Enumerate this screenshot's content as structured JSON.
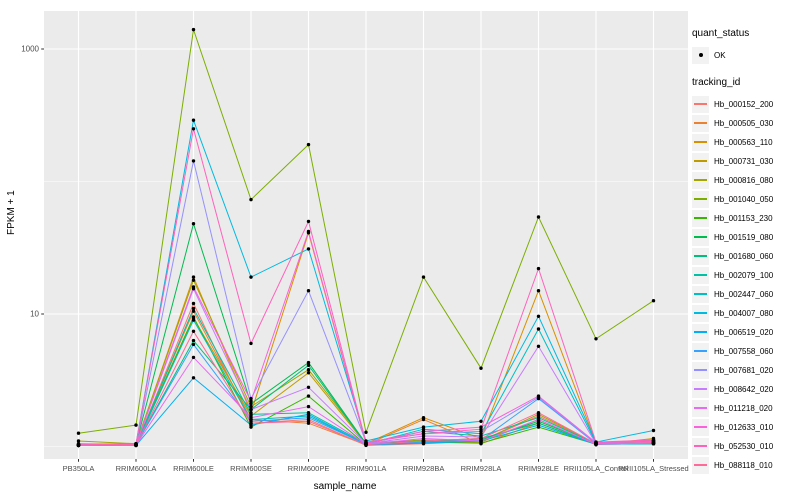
{
  "figure": {
    "y_axis_title": "FPKM + 1",
    "x_axis_title": "sample_name"
  },
  "legend": {
    "quant_status_title": "quant_status",
    "quant_status_items": [
      {
        "label": "OK",
        "marker": "point"
      }
    ],
    "tracking_title": "tracking_id"
  },
  "colors": {
    "panel_bg": "#EBEBEB",
    "grid": "#FFFFFF",
    "tick_mark": "#333333",
    "tick_label": "#4D4D4D",
    "legend_key_bg": "#F2F2F2",
    "point": "#000000",
    "page_bg": "#FFFFFF"
  },
  "chart_data": {
    "type": "line",
    "title": "",
    "xlabel": "sample_name",
    "ylabel": "FPKM + 1",
    "y_scale": "log10",
    "ylim": [
      1,
      2000
    ],
    "grid": true,
    "legend_position": "right",
    "point_marker": "filled-circle-black",
    "y_major_ticks": [
      {
        "label": "10",
        "value": 10
      },
      {
        "label": "1000",
        "value": 1000
      }
    ],
    "y_minor_ticks": [
      1,
      100
    ],
    "categories": [
      "PB350LA",
      "RRIM600LA",
      "RRIM600LE",
      "RRIM600SE",
      "RRIM600PE",
      "RRIM901LA",
      "RRIM928BA",
      "RRIM928LA",
      "RRIM928LE",
      "RRII105LA_Control",
      "RRII105LA_Stressed"
    ],
    "series": [
      {
        "name": "Hb_000152_200",
        "color": "#F8766D",
        "values": [
          1.02,
          1.02,
          12,
          1.5,
          1.6,
          1.02,
          1.05,
          1.1,
          1.7,
          1.05,
          1.05
        ]
      },
      {
        "name": "Hb_000505_030",
        "color": "#EA8331",
        "values": [
          1.05,
          1.03,
          10.5,
          1.6,
          1.5,
          1.03,
          1.6,
          1.05,
          1.5,
          1.04,
          1.1
        ]
      },
      {
        "name": "Hb_000563_110",
        "color": "#D89000",
        "values": [
          1.02,
          1.04,
          19,
          1.8,
          41,
          1.05,
          1.65,
          1.15,
          15,
          1.06,
          1.12
        ]
      },
      {
        "name": "Hb_000731_030",
        "color": "#C09B00",
        "values": [
          1.03,
          1.02,
          9.3,
          1.7,
          3.6,
          1.04,
          1.1,
          1.08,
          1.6,
          1.03,
          1.15
        ]
      },
      {
        "name": "Hb_000816_080",
        "color": "#A3A500",
        "values": [
          1.1,
          1.05,
          18,
          2.0,
          3.8,
          1.06,
          1.12,
          1.1,
          1.75,
          1.05,
          1.1
        ]
      },
      {
        "name": "Hb_001040_050",
        "color": "#7CAE00",
        "values": [
          1.26,
          1.45,
          1400,
          73,
          190,
          1.28,
          19,
          3.9,
          54,
          6.5,
          12.6
        ]
      },
      {
        "name": "Hb_001153_230",
        "color": "#39B600",
        "values": [
          1.02,
          1.03,
          9.5,
          1.4,
          2.4,
          1.03,
          1.08,
          1.06,
          1.4,
          1.04,
          1.05
        ]
      },
      {
        "name": "Hb_001519_080",
        "color": "#00BB4E",
        "values": [
          1.03,
          1.04,
          48,
          2.1,
          4.3,
          1.05,
          1.1,
          1.12,
          1.55,
          1.05,
          1.06
        ]
      },
      {
        "name": "Hb_001680_060",
        "color": "#00BF7D",
        "values": [
          1.02,
          1.03,
          6.3,
          1.9,
          4.1,
          1.04,
          1.1,
          1.15,
          1.5,
          1.04,
          1.05
        ]
      },
      {
        "name": "Hb_002079_100",
        "color": "#00C1A3",
        "values": [
          1.03,
          1.02,
          11,
          1.75,
          1.8,
          1.05,
          1.3,
          1.2,
          1.65,
          1.05,
          1.08
        ]
      },
      {
        "name": "Hb_002447_060",
        "color": "#00BFC4",
        "values": [
          1.02,
          1.03,
          9.0,
          1.6,
          1.7,
          1.04,
          1.35,
          1.25,
          7.7,
          1.06,
          1.1
        ]
      },
      {
        "name": "Hb_004007_080",
        "color": "#00BAE0",
        "values": [
          1.04,
          1.05,
          290,
          19,
          31,
          1.1,
          1.4,
          1.55,
          9.6,
          1.08,
          1.32
        ]
      },
      {
        "name": "Hb_006519_020",
        "color": "#00B0F6",
        "values": [
          1.02,
          1.02,
          3.3,
          1.45,
          1.75,
          1.03,
          1.06,
          1.1,
          1.45,
          1.04,
          1.05
        ]
      },
      {
        "name": "Hb_007558_060",
        "color": "#35A2FF",
        "values": [
          1.02,
          1.03,
          5.9,
          1.55,
          1.65,
          1.04,
          1.08,
          1.12,
          2.3,
          1.05,
          1.06
        ]
      },
      {
        "name": "Hb_007681_020",
        "color": "#9590FF",
        "values": [
          1.03,
          1.02,
          143,
          2.3,
          15,
          1.08,
          1.25,
          1.3,
          2.35,
          1.06,
          1.07
        ]
      },
      {
        "name": "Hb_008642_020",
        "color": "#C77CFF",
        "values": [
          1.02,
          1.03,
          15.5,
          1.9,
          2.8,
          1.05,
          1.2,
          1.18,
          5.7,
          1.05,
          1.08
        ]
      },
      {
        "name": "Hb_011218_020",
        "color": "#E76BF3",
        "values": [
          1.03,
          1.02,
          4.7,
          1.65,
          2.0,
          1.04,
          1.15,
          1.1,
          1.6,
          1.04,
          1.06
        ]
      },
      {
        "name": "Hb_012633_010",
        "color": "#FA62DB",
        "values": [
          1.02,
          1.04,
          16,
          2.2,
          42,
          1.06,
          1.3,
          1.4,
          2.4,
          1.07,
          1.1
        ]
      },
      {
        "name": "Hb_052530_010",
        "color": "#FF62BC",
        "values": [
          1.03,
          1.05,
          250,
          6.0,
          50,
          1.07,
          1.25,
          1.35,
          22,
          1.08,
          1.12
        ]
      },
      {
        "name": "Hb_088118_010",
        "color": "#FF6A98",
        "values": [
          1.02,
          1.03,
          7.4,
          1.5,
          1.55,
          1.03,
          1.1,
          1.15,
          1.8,
          1.05,
          1.07
        ]
      }
    ]
  }
}
